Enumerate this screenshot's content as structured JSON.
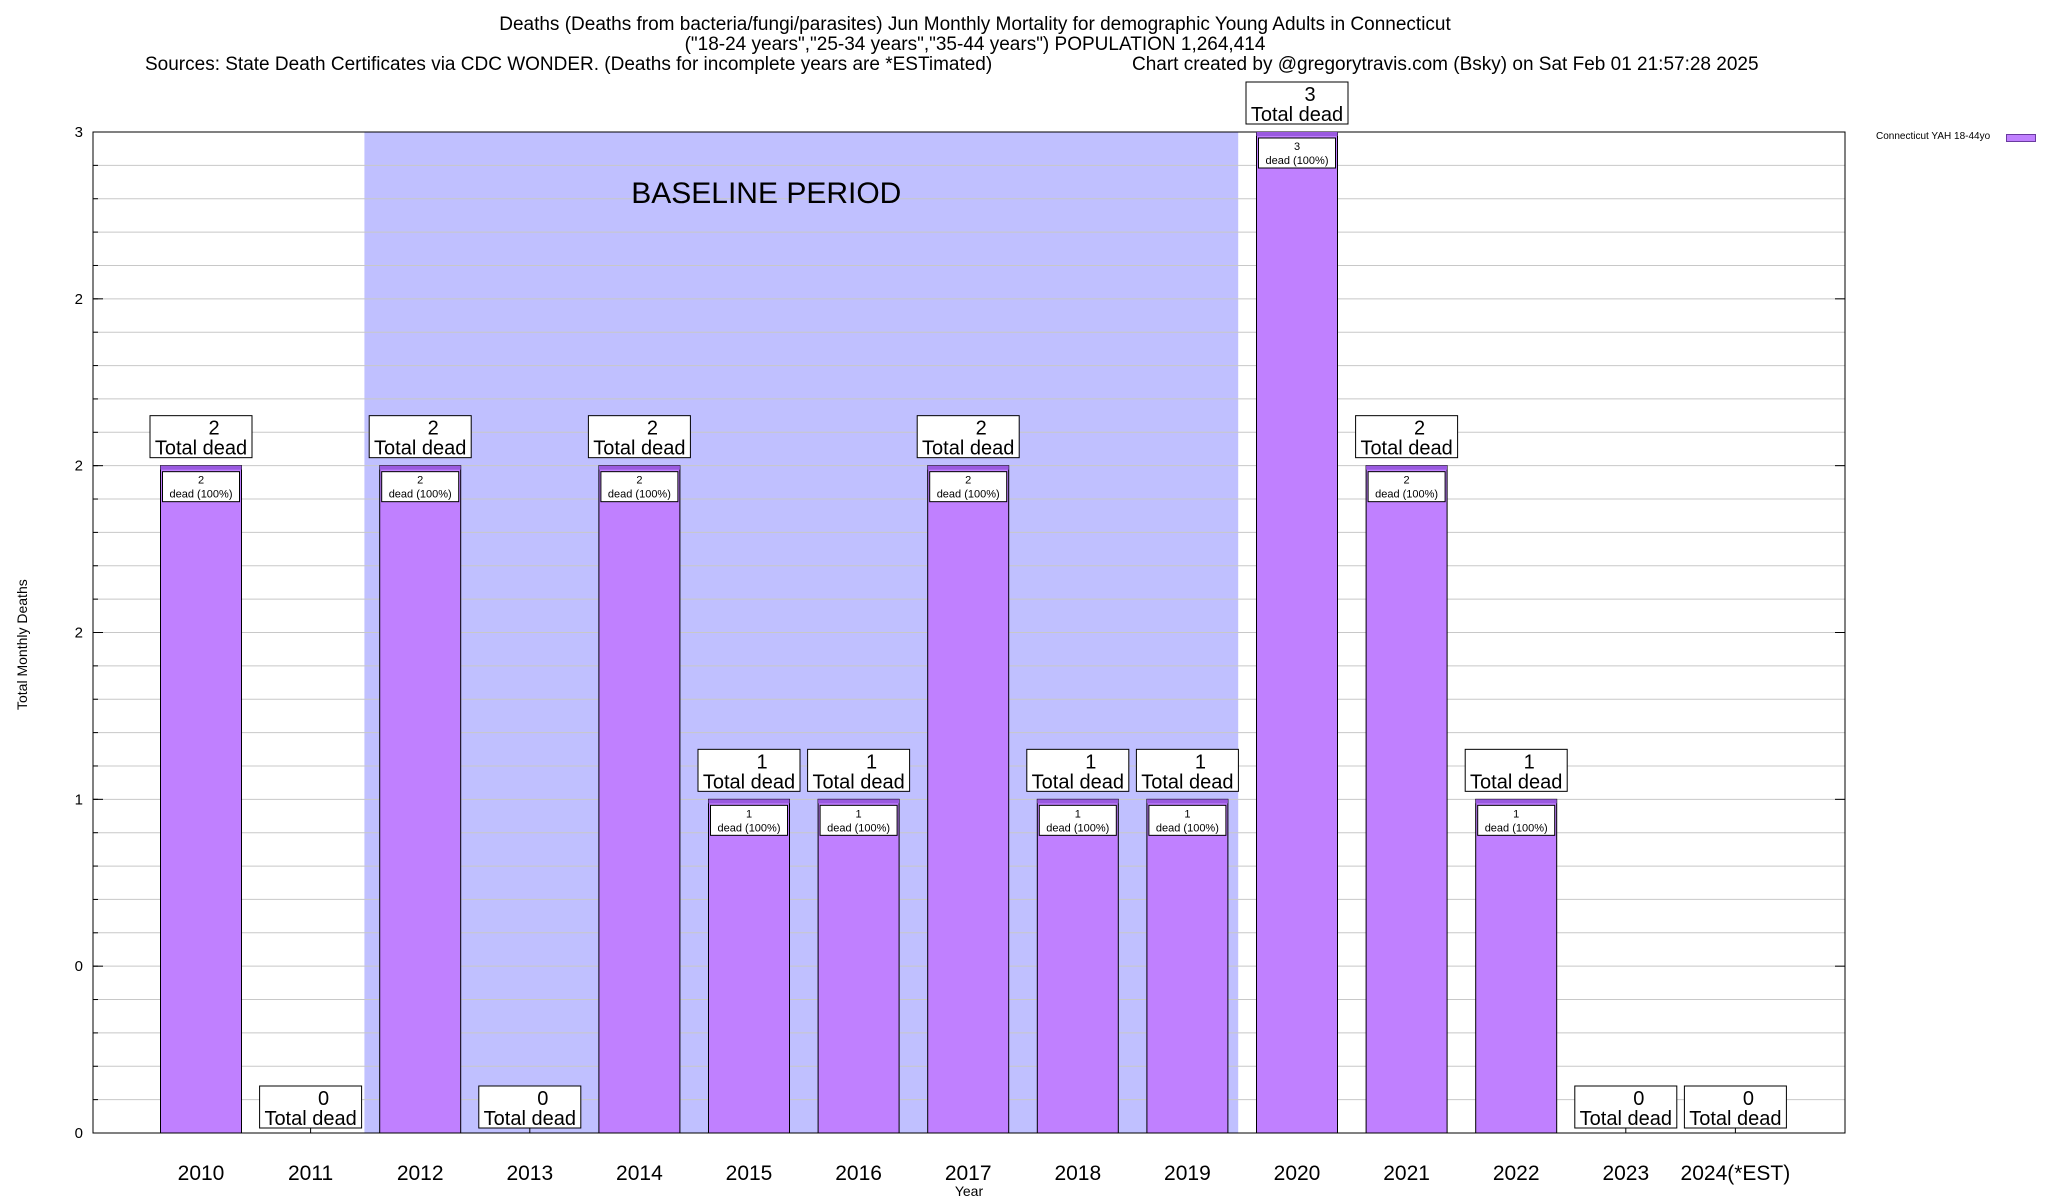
{
  "header": {
    "title_line1": "Deaths (Deaths from bacteria/fungi/parasites) Jun Monthly Mortality for demographic Young Adults in Connecticut",
    "title_line2": "(\"18-24 years\",\"25-34 years\",\"35-44 years\") POPULATION 1,264,414",
    "sources": "Sources: State Death Certificates via CDC WONDER. (Deaths for incomplete years are *ESTimated)",
    "credit": "Chart created by @gregorytravis.com (Bsky) on Sat Feb 01 21:57:28 2025"
  },
  "chart_data": {
    "type": "bar",
    "xlabel": "Year",
    "ylabel": "Total Monthly Deaths",
    "ylim": [
      0,
      3
    ],
    "y_ticks": [
      {
        "value": 0,
        "label": "0"
      },
      {
        "value": 0.5,
        "label": "0"
      },
      {
        "value": 1,
        "label": "1"
      },
      {
        "value": 1.5,
        "label": "2"
      },
      {
        "value": 2,
        "label": "2"
      },
      {
        "value": 2.5,
        "label": "2"
      },
      {
        "value": 3,
        "label": "3"
      }
    ],
    "grid": true,
    "legend_placement": "top-right, outside plot",
    "categories": [
      "2010",
      "2011",
      "2012",
      "2013",
      "2014",
      "2015",
      "2016",
      "2017",
      "2018",
      "2019",
      "2020",
      "2021",
      "2022",
      "2023",
      "2024(*EST)"
    ],
    "series": [
      {
        "name": "Connecticut YAH 18-44yo",
        "values": [
          2,
          0,
          2,
          0,
          2,
          1,
          1,
          2,
          1,
          1,
          3,
          2,
          1,
          0,
          0
        ]
      }
    ],
    "total_label_suffix": "Total dead",
    "inner_label_suffix": "dead (100%)",
    "baseline_period": {
      "label": "BASELINE PERIOD",
      "from": "2012",
      "to": "2019"
    },
    "colors": {
      "bar": "#c080ff",
      "bar_outline": "#000000",
      "bar_top": "#9a5ae0",
      "baseline_shade": "#c0c0ff",
      "grid": "#c8c8c8"
    }
  }
}
